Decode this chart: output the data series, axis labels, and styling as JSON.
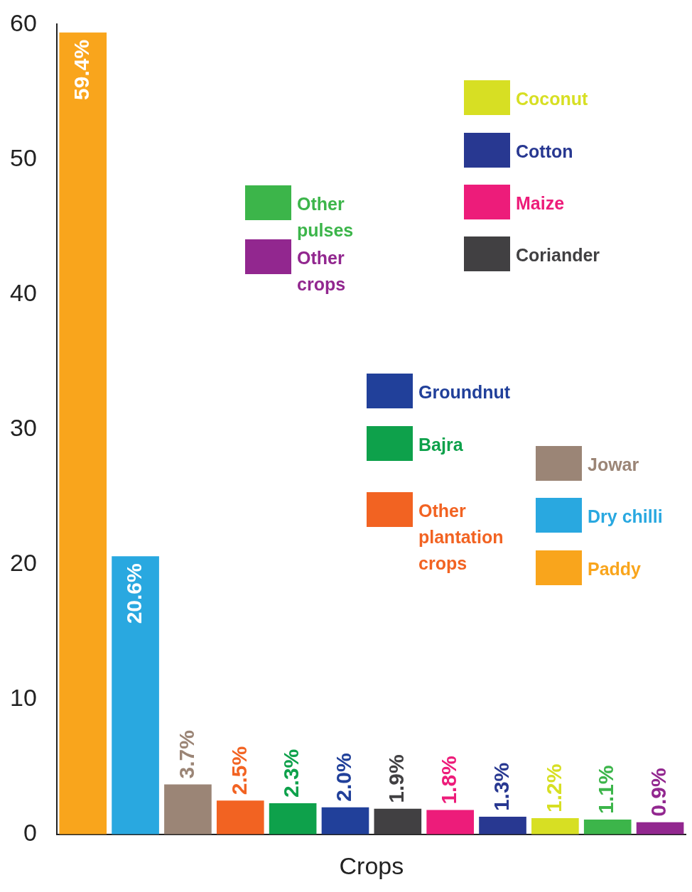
{
  "chart_data": {
    "type": "bar",
    "xlabel": "Crops",
    "categories": [
      null,
      null,
      null,
      null,
      null,
      null,
      null,
      null,
      null,
      null,
      null,
      null
    ],
    "ylim": [
      0,
      60
    ],
    "yticks": [
      0,
      10,
      20,
      30,
      40,
      50,
      60
    ],
    "grid": false,
    "legend": "top right",
    "series": [
      {
        "name": "Paddy",
        "color": "#f9a51c",
        "values": [
          59.4,
          null,
          null,
          null,
          null,
          null,
          null,
          null,
          null,
          null,
          null,
          null
        ],
        "value_labels": [
          "59.4%",
          null,
          null,
          null,
          null,
          null,
          null,
          null,
          null,
          null,
          null,
          null
        ]
      },
      {
        "name": "Dry chilli",
        "color": "#29a8e0",
        "values": [
          null,
          20.6,
          null,
          null,
          null,
          null,
          null,
          null,
          null,
          null,
          null,
          null
        ],
        "value_labels": [
          null,
          "20.6%",
          null,
          null,
          null,
          null,
          null,
          null,
          null,
          null,
          null,
          null
        ]
      },
      {
        "name": "Jowar",
        "color": "#9b8576",
        "values": [
          null,
          null,
          3.7,
          null,
          null,
          null,
          null,
          null,
          null,
          null,
          null,
          null
        ],
        "value_labels": [
          null,
          null,
          "3.7%",
          null,
          null,
          null,
          null,
          null,
          null,
          null,
          null,
          null
        ]
      },
      {
        "name": "Other plantation crops",
        "color": "#f26322",
        "values": [
          null,
          null,
          null,
          2.5,
          null,
          null,
          null,
          null,
          null,
          null,
          null,
          null
        ],
        "value_labels": [
          null,
          null,
          null,
          "2.5%",
          null,
          null,
          null,
          null,
          null,
          null,
          null,
          null
        ]
      },
      {
        "name": "Bajra",
        "color": "#0ea14b",
        "values": [
          null,
          null,
          null,
          null,
          2.3,
          null,
          null,
          null,
          null,
          null,
          null,
          null
        ],
        "value_labels": [
          null,
          null,
          null,
          null,
          "2.3%",
          null,
          null,
          null,
          null,
          null,
          null,
          null
        ]
      },
      {
        "name": "Groundnut",
        "color": "#21409a",
        "values": [
          null,
          null,
          null,
          null,
          null,
          2.0,
          null,
          null,
          null,
          null,
          null,
          null
        ],
        "value_labels": [
          null,
          null,
          null,
          null,
          null,
          "2.0%",
          null,
          null,
          null,
          null,
          null,
          null
        ]
      },
      {
        "name": "Coriander",
        "color": "#414042",
        "values": [
          null,
          null,
          null,
          null,
          null,
          null,
          1.9,
          null,
          null,
          null,
          null,
          null
        ],
        "value_labels": [
          null,
          null,
          null,
          null,
          null,
          null,
          "1.9%",
          null,
          null,
          null,
          null,
          null
        ]
      },
      {
        "name": "Maize",
        "color": "#ed1c7a",
        "values": [
          null,
          null,
          null,
          null,
          null,
          null,
          null,
          1.8,
          null,
          null,
          null,
          null
        ],
        "value_labels": [
          null,
          null,
          null,
          null,
          null,
          null,
          null,
          "1.8%",
          null,
          null,
          null,
          null
        ]
      },
      {
        "name": "Cotton",
        "color": "#283891",
        "values": [
          null,
          null,
          null,
          null,
          null,
          null,
          null,
          null,
          1.3,
          null,
          null,
          null
        ],
        "value_labels": [
          null,
          null,
          null,
          null,
          null,
          null,
          null,
          null,
          "1.3%",
          null,
          null,
          null
        ]
      },
      {
        "name": "Coconut",
        "color": "#d7df23",
        "values": [
          null,
          null,
          null,
          null,
          null,
          null,
          null,
          null,
          null,
          1.2,
          null,
          null
        ],
        "value_labels": [
          null,
          null,
          null,
          null,
          null,
          null,
          null,
          null,
          null,
          "1.2%",
          null,
          null
        ]
      },
      {
        "name": "Other pulses",
        "color": "#3cb54a",
        "values": [
          null,
          null,
          null,
          null,
          null,
          null,
          null,
          null,
          null,
          null,
          1.1,
          null
        ],
        "value_labels": [
          null,
          null,
          null,
          null,
          null,
          null,
          null,
          null,
          null,
          null,
          "1.1%",
          null
        ]
      },
      {
        "name": "Other crops",
        "color": "#92278f",
        "values": [
          null,
          null,
          null,
          null,
          null,
          null,
          null,
          null,
          null,
          null,
          null,
          0.9
        ],
        "value_labels": [
          null,
          null,
          null,
          null,
          null,
          null,
          null,
          null,
          null,
          null,
          null,
          "0.9%"
        ]
      }
    ]
  }
}
